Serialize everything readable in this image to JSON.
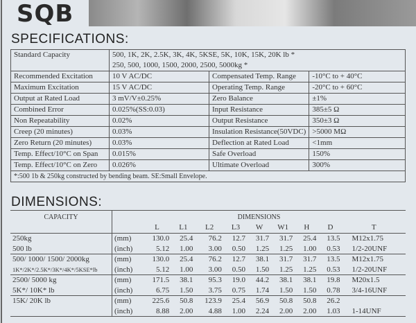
{
  "logo": "SQB",
  "specifications_title": "SPECIFICATIONS:",
  "standard_capacity": {
    "label": "Standard Capacity",
    "line1": "500, 1K, 2K, 2.5K, 3K, 4K, 5KSE, 5K, 10K, 15K, 20K lb  *",
    "line2": "250, 500, 1000, 1500, 2000, 2500, 5000kg *"
  },
  "spec_rows": [
    [
      "Recommended Excitation",
      "10 V AC/DC",
      "Compensated Temp. Range",
      "-10°C to + 40°C"
    ],
    [
      "Maximum Excitation",
      "15 V AC/DC",
      "Operating Temp. Range",
      "-20°C to + 60°C"
    ],
    [
      "Output at Rated Load",
      "3 mV/V±0.25%",
      "Zero Balance",
      "±1%"
    ],
    [
      "Combined Error",
      "0.025%(SS:0.03)",
      "Input Resistance",
      "385±5 Ω"
    ],
    [
      "Non Repeatability",
      "0.02%",
      "Output Resistance",
      "350±3 Ω"
    ],
    [
      "Creep (20 minutes)",
      "0.03%",
      "Insulation Resistance(50VDC)",
      ">5000 MΩ"
    ],
    [
      "Zero Return (20 minutes)",
      "0.03%",
      "Deflection at Rated Load",
      "<1mm"
    ],
    [
      "Temp. Effect/10°C on Span",
      "0.015%",
      "Safe Overload",
      "150%"
    ],
    [
      "Temp. Effect/10°C on Zero",
      "0.026%",
      "Ultimate Overload",
      "300%"
    ]
  ],
  "spec_note": "*:500 1b & 250kg constructed by bending beam. SE:Small Envelope.",
  "dimensions_title": "DIMENSIONS:",
  "dim_table": {
    "capacity_header": "CAPACITY",
    "dimensions_header": "DIMENSIONS",
    "columns": [
      "L",
      "L1",
      "L2",
      "L3",
      "W",
      "W1",
      "H",
      "D",
      "T"
    ],
    "groups": [
      {
        "cap": [
          "250kg",
          "500 lb"
        ],
        "rows": [
          [
            "(mm)",
            "130.0",
            "25.4",
            "76.2",
            "12.7",
            "31.7",
            "31.7",
            "25.4",
            "13.5",
            "M12x1.75"
          ],
          [
            "(inch)",
            "5.12",
            "1.00",
            "3.00",
            "0.50",
            "1.25",
            "1.25",
            "1.00",
            "0.53",
            "1/2-20UNF"
          ]
        ]
      },
      {
        "cap": [
          "500/ 1000/ 1500/ 2000kg",
          "1K*/2K*/2.5K*/3K*/4K*/5KSE*lb"
        ],
        "rows": [
          [
            "(mm)",
            "130.0",
            "25.4",
            "76.2",
            "12.7",
            "38.1",
            "31.7",
            "31.7",
            "13.5",
            "M12x1.75"
          ],
          [
            "(inch)",
            "5.12",
            "1.00",
            "3.00",
            "0.50",
            "1.50",
            "1.25",
            "1.25",
            "0.53",
            "1/2-20UNF"
          ]
        ]
      },
      {
        "cap": [
          "2500/ 5000 kg",
          "5K*/ 10K* lb"
        ],
        "rows": [
          [
            "(mm)",
            "171.5",
            "38.1",
            "95.3",
            "19.0",
            "44.2",
            "38.1",
            "38.1",
            "19.8",
            "M20x1.5"
          ],
          [
            "(inch)",
            "6.75",
            "1.50",
            "3.75",
            "0.75",
            "1.74",
            "1.50",
            "1.50",
            "0.78",
            "3/4-16UNF"
          ]
        ]
      },
      {
        "cap": [
          "15K/ 20K lb",
          ""
        ],
        "rows": [
          [
            "(mm)",
            "225.6",
            "50.8",
            "123.9",
            "25.4",
            "56.9",
            "50.8",
            "50.8",
            "26.2",
            ""
          ],
          [
            "(inch)",
            "8.88",
            "2.00",
            "4.88",
            "1.00",
            "2.24",
            "2.00",
            "2.00",
            "1.03",
            "1-14UNF"
          ]
        ]
      }
    ]
  }
}
